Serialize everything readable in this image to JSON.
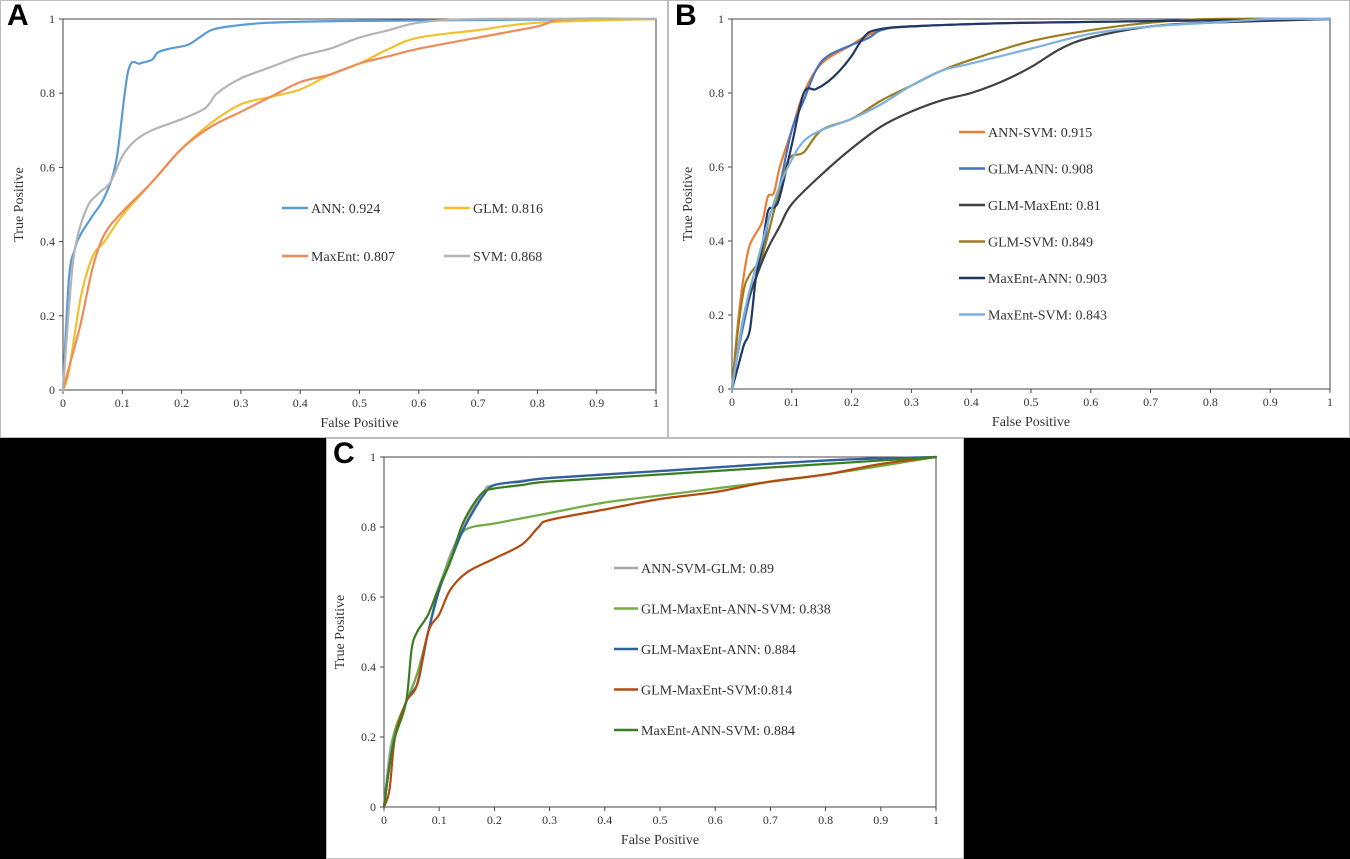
{
  "chart_data": [
    {
      "panel_label": "A",
      "type": "line",
      "xlabel": "False Positive",
      "ylabel": "True Positive",
      "xlim": [
        0,
        1
      ],
      "ylim": [
        0,
        1
      ],
      "x_ticks": [
        "0",
        "0.1",
        "0.2",
        "0.3",
        "0.4",
        "0.5",
        "0.6",
        "0.7",
        "0.8",
        "0.9",
        "1"
      ],
      "y_ticks": [
        "0",
        "0.2",
        "0.4",
        "0.6",
        "0.8",
        "1"
      ],
      "legend_layout": "grid-2col-center",
      "series": [
        {
          "name": "ANN: 0.924",
          "color": "#5b9bd5",
          "x": [
            0,
            0.01,
            0.02,
            0.03,
            0.05,
            0.07,
            0.09,
            0.11,
            0.13,
            0.15,
            0.16,
            0.18,
            0.21,
            0.23,
            0.25,
            0.28,
            0.35,
            0.5,
            1
          ],
          "y": [
            0,
            0.3,
            0.38,
            0.42,
            0.47,
            0.52,
            0.62,
            0.86,
            0.88,
            0.89,
            0.91,
            0.92,
            0.93,
            0.95,
            0.97,
            0.98,
            0.99,
            0.995,
            1
          ]
        },
        {
          "name": "GLM: 0.816",
          "color": "#f2c02c",
          "x": [
            0,
            0.01,
            0.03,
            0.05,
            0.07,
            0.1,
            0.15,
            0.2,
            0.25,
            0.3,
            0.35,
            0.4,
            0.45,
            0.5,
            0.55,
            0.6,
            0.7,
            0.8,
            1
          ],
          "y": [
            0,
            0.05,
            0.25,
            0.36,
            0.4,
            0.47,
            0.56,
            0.65,
            0.72,
            0.77,
            0.79,
            0.81,
            0.85,
            0.88,
            0.92,
            0.95,
            0.97,
            0.99,
            1
          ]
        },
        {
          "name": "MaxEnt: 0.807",
          "color": "#ed8b5a",
          "x": [
            0,
            0.01,
            0.03,
            0.05,
            0.07,
            0.1,
            0.15,
            0.2,
            0.25,
            0.3,
            0.35,
            0.4,
            0.45,
            0.5,
            0.55,
            0.6,
            0.7,
            0.8,
            0.85,
            1
          ],
          "y": [
            0,
            0.06,
            0.18,
            0.33,
            0.42,
            0.48,
            0.56,
            0.65,
            0.71,
            0.75,
            0.79,
            0.83,
            0.85,
            0.88,
            0.9,
            0.92,
            0.95,
            0.98,
            1,
            1
          ]
        },
        {
          "name": "SVM: 0.868",
          "color": "#b4b4b4",
          "x": [
            0,
            0.01,
            0.02,
            0.04,
            0.06,
            0.08,
            0.1,
            0.12,
            0.15,
            0.2,
            0.24,
            0.26,
            0.3,
            0.35,
            0.4,
            0.45,
            0.5,
            0.55,
            0.6,
            0.7,
            1
          ],
          "y": [
            0,
            0.22,
            0.38,
            0.49,
            0.53,
            0.56,
            0.63,
            0.67,
            0.7,
            0.73,
            0.76,
            0.8,
            0.84,
            0.87,
            0.9,
            0.92,
            0.95,
            0.97,
            0.99,
            1,
            1
          ]
        }
      ]
    },
    {
      "panel_label": "B",
      "type": "line",
      "xlabel": "False Positive",
      "ylabel": "True Positive",
      "xlim": [
        0,
        1
      ],
      "ylim": [
        0,
        1
      ],
      "x_ticks": [
        "0",
        "0.1",
        "0.2",
        "0.3",
        "0.4",
        "0.5",
        "0.6",
        "0.7",
        "0.8",
        "0.9",
        "1"
      ],
      "y_ticks": [
        "0",
        "0.2",
        "0.4",
        "0.6",
        "0.8",
        "1"
      ],
      "legend_layout": "column-center",
      "series": [
        {
          "name": "ANN-SVM: 0.915",
          "color": "#ed7d31",
          "x": [
            0,
            0.01,
            0.02,
            0.03,
            0.05,
            0.06,
            0.07,
            0.08,
            0.1,
            0.12,
            0.15,
            0.2,
            0.22,
            0.25,
            0.3,
            0.5,
            1
          ],
          "y": [
            0,
            0.18,
            0.31,
            0.39,
            0.45,
            0.52,
            0.53,
            0.6,
            0.7,
            0.8,
            0.88,
            0.93,
            0.95,
            0.97,
            0.98,
            0.99,
            1
          ]
        },
        {
          "name": "GLM-ANN: 0.908",
          "color": "#4472c4",
          "x": [
            0,
            0.01,
            0.03,
            0.05,
            0.06,
            0.07,
            0.08,
            0.1,
            0.12,
            0.14,
            0.16,
            0.2,
            0.23,
            0.25,
            0.3,
            0.5,
            1
          ],
          "y": [
            0,
            0.1,
            0.25,
            0.35,
            0.45,
            0.5,
            0.55,
            0.7,
            0.78,
            0.86,
            0.9,
            0.93,
            0.95,
            0.97,
            0.98,
            0.99,
            1
          ]
        },
        {
          "name": "GLM-MaxEnt: 0.81",
          "color": "#404040",
          "x": [
            0,
            0.02,
            0.04,
            0.06,
            0.08,
            0.1,
            0.15,
            0.2,
            0.25,
            0.3,
            0.35,
            0.4,
            0.45,
            0.5,
            0.55,
            0.6,
            0.7,
            0.8,
            1
          ],
          "y": [
            0,
            0.2,
            0.3,
            0.38,
            0.44,
            0.5,
            0.58,
            0.65,
            0.71,
            0.75,
            0.78,
            0.8,
            0.83,
            0.87,
            0.92,
            0.95,
            0.98,
            0.99,
            1
          ]
        },
        {
          "name": "GLM-SVM: 0.849",
          "color": "#9c7c1f",
          "x": [
            0,
            0.01,
            0.02,
            0.03,
            0.05,
            0.07,
            0.09,
            0.1,
            0.12,
            0.15,
            0.2,
            0.25,
            0.3,
            0.35,
            0.4,
            0.5,
            0.6,
            0.7,
            0.8,
            1
          ],
          "y": [
            0,
            0.16,
            0.27,
            0.31,
            0.36,
            0.48,
            0.6,
            0.63,
            0.64,
            0.7,
            0.73,
            0.78,
            0.82,
            0.86,
            0.89,
            0.94,
            0.97,
            0.99,
            1,
            1
          ]
        },
        {
          "name": "MaxEnt-ANN: 0.903",
          "color": "#203864",
          "x": [
            0,
            0.01,
            0.02,
            0.03,
            0.04,
            0.05,
            0.06,
            0.07,
            0.08,
            0.1,
            0.12,
            0.14,
            0.16,
            0.18,
            0.2,
            0.22,
            0.24,
            0.3,
            0.5,
            1
          ],
          "y": [
            0,
            0.06,
            0.12,
            0.16,
            0.3,
            0.38,
            0.48,
            0.49,
            0.52,
            0.66,
            0.8,
            0.81,
            0.83,
            0.86,
            0.9,
            0.95,
            0.97,
            0.98,
            0.99,
            1
          ]
        },
        {
          "name": "MaxEnt-SVM: 0.843",
          "color": "#7fb1de",
          "x": [
            0,
            0.02,
            0.04,
            0.06,
            0.08,
            0.1,
            0.12,
            0.15,
            0.2,
            0.25,
            0.3,
            0.35,
            0.4,
            0.5,
            0.6,
            0.7,
            0.8,
            0.9,
            1
          ],
          "y": [
            0,
            0.2,
            0.33,
            0.45,
            0.55,
            0.62,
            0.67,
            0.7,
            0.73,
            0.77,
            0.82,
            0.86,
            0.88,
            0.92,
            0.96,
            0.98,
            0.99,
            1,
            1
          ]
        }
      ]
    },
    {
      "panel_label": "C",
      "type": "line",
      "xlabel": "False Positive",
      "ylabel": "True Positive",
      "xlim": [
        0,
        1
      ],
      "ylim": [
        0,
        1
      ],
      "x_ticks": [
        "0",
        "0.1",
        "0.2",
        "0.3",
        "0.4",
        "0.5",
        "0.6",
        "0.7",
        "0.8",
        "0.9",
        "1"
      ],
      "y_ticks": [
        "0",
        "0.2",
        "0.4",
        "0.6",
        "0.8",
        "1"
      ],
      "legend_layout": "column-center",
      "series": [
        {
          "name": "ANN-SVM-GLM: 0.89",
          "color": "#a5a5a5",
          "x": [
            0,
            0.01,
            0.02,
            0.04,
            0.06,
            0.08,
            0.1,
            0.12,
            0.15,
            0.18,
            0.2,
            0.3,
            0.5,
            0.8,
            1
          ],
          "y": [
            0,
            0.15,
            0.22,
            0.3,
            0.38,
            0.5,
            0.62,
            0.72,
            0.82,
            0.9,
            0.92,
            0.94,
            0.96,
            0.99,
            1
          ]
        },
        {
          "name": "GLM-MaxEnt-ANN-SVM: 0.838",
          "color": "#70ad47",
          "x": [
            0,
            0.01,
            0.02,
            0.04,
            0.06,
            0.08,
            0.1,
            0.12,
            0.14,
            0.16,
            0.2,
            0.3,
            0.4,
            0.5,
            0.6,
            0.8,
            1
          ],
          "y": [
            0,
            0.12,
            0.22,
            0.3,
            0.38,
            0.5,
            0.63,
            0.71,
            0.78,
            0.8,
            0.81,
            0.84,
            0.87,
            0.89,
            0.91,
            0.95,
            1
          ]
        },
        {
          "name": "GLM-MaxEnt-ANN: 0.884",
          "color": "#2e5fa0",
          "x": [
            0,
            0.01,
            0.02,
            0.04,
            0.06,
            0.07,
            0.08,
            0.1,
            0.12,
            0.14,
            0.16,
            0.18,
            0.2,
            0.25,
            0.3,
            0.5,
            0.8,
            1
          ],
          "y": [
            0,
            0.12,
            0.2,
            0.3,
            0.35,
            0.42,
            0.5,
            0.62,
            0.7,
            0.78,
            0.84,
            0.89,
            0.92,
            0.93,
            0.94,
            0.96,
            0.99,
            1
          ]
        },
        {
          "name": "GLM-MaxEnt-SVM:0.814",
          "color": "#b34a0f",
          "x": [
            0,
            0.01,
            0.02,
            0.04,
            0.06,
            0.08,
            0.1,
            0.12,
            0.15,
            0.2,
            0.25,
            0.28,
            0.3,
            0.4,
            0.5,
            0.6,
            0.7,
            0.8,
            0.9,
            1
          ],
          "y": [
            0,
            0.05,
            0.2,
            0.3,
            0.35,
            0.5,
            0.55,
            0.62,
            0.67,
            0.71,
            0.75,
            0.8,
            0.82,
            0.85,
            0.88,
            0.9,
            0.93,
            0.95,
            0.98,
            1
          ]
        },
        {
          "name": "MaxEnt-ANN-SVM: 0.884",
          "color": "#3a7d22",
          "x": [
            0,
            0.01,
            0.02,
            0.04,
            0.05,
            0.06,
            0.08,
            0.1,
            0.12,
            0.14,
            0.16,
            0.18,
            0.2,
            0.25,
            0.3,
            0.5,
            0.8,
            1
          ],
          "y": [
            0,
            0.12,
            0.2,
            0.3,
            0.45,
            0.5,
            0.55,
            0.63,
            0.7,
            0.8,
            0.86,
            0.9,
            0.91,
            0.92,
            0.93,
            0.95,
            0.98,
            1
          ]
        }
      ]
    }
  ]
}
